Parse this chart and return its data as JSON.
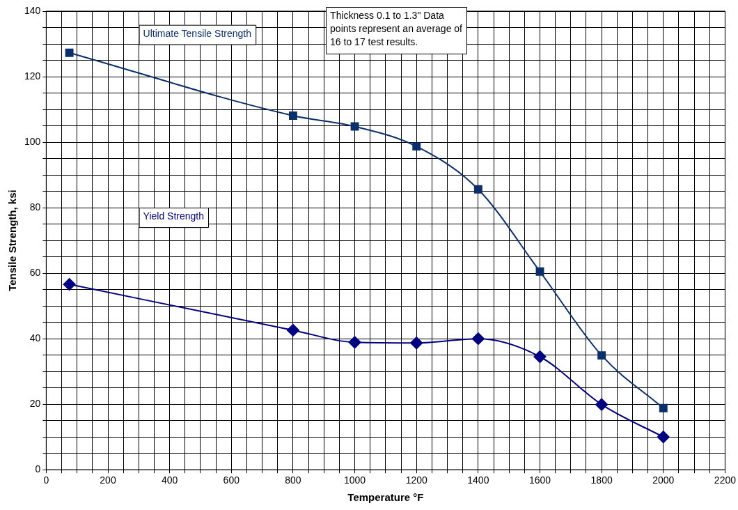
{
  "chart_data": {
    "type": "line",
    "xlabel": "Temperature °F",
    "ylabel": "Tensile Strength, ksi",
    "xlim": [
      0,
      2200
    ],
    "ylim": [
      0,
      140
    ],
    "xticks": [
      0,
      {
        "value": 50,
        "label": null
      },
      {
        "value": 100,
        "label": null
      },
      {
        "value": 150,
        "label": null
      },
      200,
      {
        "value": 250,
        "label": null
      },
      {
        "value": 300,
        "label": null
      },
      {
        "value": 350,
        "label": null
      },
      400,
      {
        "value": 450,
        "label": null
      },
      {
        "value": 500,
        "label": null
      },
      {
        "value": 550,
        "label": null
      },
      600,
      {
        "value": 650,
        "label": null
      },
      {
        "value": 700,
        "label": null
      },
      {
        "value": 750,
        "label": null
      },
      800,
      {
        "value": 850,
        "label": null
      },
      {
        "value": 900,
        "label": null
      },
      {
        "value": 950,
        "label": null
      },
      1000,
      {
        "value": 1050,
        "label": null
      },
      {
        "value": 1100,
        "label": null
      },
      {
        "value": 1150,
        "label": null
      },
      1200,
      {
        "value": 1250,
        "label": null
      },
      {
        "value": 1300,
        "label": null
      },
      {
        "value": 1350,
        "label": null
      },
      1400,
      {
        "value": 1450,
        "label": null
      },
      {
        "value": 1500,
        "label": null
      },
      {
        "value": 1550,
        "label": null
      },
      1600,
      {
        "value": 1650,
        "label": null
      },
      {
        "value": 1700,
        "label": null
      },
      {
        "value": 1750,
        "label": null
      },
      1800,
      {
        "value": 1850,
        "label": null
      },
      {
        "value": 1900,
        "label": null
      },
      {
        "value": 1950,
        "label": null
      },
      2000,
      {
        "value": 2050,
        "label": null
      },
      {
        "value": 2100,
        "label": null
      },
      {
        "value": 2150,
        "label": null
      },
      2200
    ],
    "yticks": [
      0,
      {
        "value": 5,
        "label": null
      },
      {
        "value": 10,
        "label": null
      },
      {
        "value": 15,
        "label": null
      },
      20,
      {
        "value": 25,
        "label": null
      },
      {
        "value": 30,
        "label": null
      },
      {
        "value": 35,
        "label": null
      },
      40,
      {
        "value": 45,
        "label": null
      },
      {
        "value": 50,
        "label": null
      },
      {
        "value": 55,
        "label": null
      },
      60,
      {
        "value": 65,
        "label": null
      },
      {
        "value": 70,
        "label": null
      },
      {
        "value": 75,
        "label": null
      },
      80,
      {
        "value": 85,
        "label": null
      },
      {
        "value": 90,
        "label": null
      },
      {
        "value": 95,
        "label": null
      },
      100,
      {
        "value": 105,
        "label": null
      },
      {
        "value": 110,
        "label": null
      },
      {
        "value": 115,
        "label": null
      },
      120,
      {
        "value": 125,
        "label": null
      },
      {
        "value": 130,
        "label": null
      },
      {
        "value": 135,
        "label": null
      },
      140
    ],
    "grid": true,
    "legend": false,
    "series": [
      {
        "name": "Ultimate Tensile Strength",
        "color": "#0a2f6b",
        "marker": "square",
        "x": [
          75,
          800,
          1000,
          1200,
          1400,
          1600,
          1800,
          2000
        ],
        "values": [
          127.3,
          108.1,
          104.8,
          98.7,
          85.6,
          60.5,
          34.9,
          18.8
        ]
      },
      {
        "name": "Yield Strength",
        "color": "#000080",
        "marker": "diamond",
        "x": [
          75,
          800,
          1000,
          1200,
          1400,
          1600,
          1800,
          2000
        ],
        "values": [
          56.6,
          42.6,
          38.9,
          38.7,
          40,
          34.5,
          19.9,
          10
        ]
      }
    ],
    "annotations": [
      "Thickness 0.1 to 1.3\" Data points represent an average of 16 to 17 test results."
    ]
  }
}
